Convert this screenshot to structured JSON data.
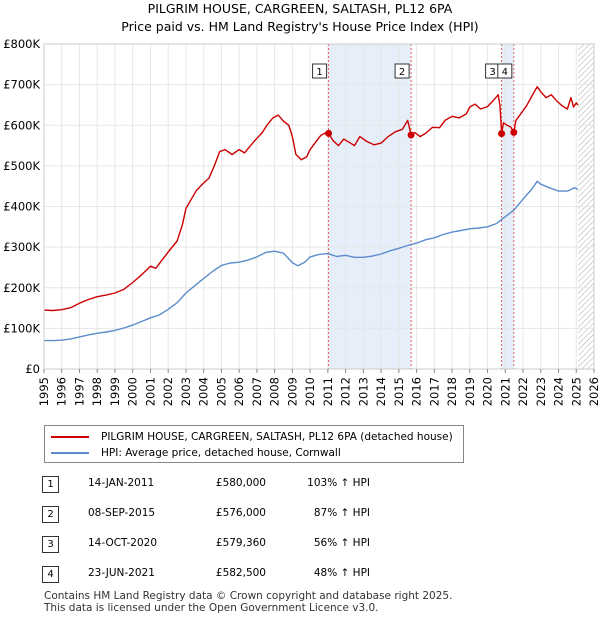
{
  "title_line1": "PILGRIM HOUSE, CARGREEN, SALTASH, PL12 6PA",
  "title_line2": "Price paid vs. HM Land Registry's House Price Index (HPI)",
  "chart_data": {
    "type": "line",
    "xlim": [
      1995,
      2026
    ],
    "ylim": [
      0,
      800000
    ],
    "y_ticks": [
      {
        "value": 0,
        "label": "£0"
      },
      {
        "value": 100000,
        "label": "£100K"
      },
      {
        "value": 200000,
        "label": "£200K"
      },
      {
        "value": 300000,
        "label": "£300K"
      },
      {
        "value": 400000,
        "label": "£400K"
      },
      {
        "value": 500000,
        "label": "£500K"
      },
      {
        "value": 600000,
        "label": "£600K"
      },
      {
        "value": 700000,
        "label": "£700K"
      },
      {
        "value": 800000,
        "label": "£800K"
      }
    ],
    "x_ticks": [
      1995,
      1996,
      1997,
      1998,
      1999,
      2000,
      2001,
      2002,
      2003,
      2004,
      2005,
      2006,
      2007,
      2008,
      2009,
      2010,
      2011,
      2012,
      2013,
      2014,
      2015,
      2016,
      2017,
      2018,
      2019,
      2020,
      2021,
      2022,
      2023,
      2024,
      2025,
      2026
    ],
    "future_hatch_from": 2025.1,
    "sale_shading": [
      [
        2011.04,
        2015.69
      ],
      [
        2020.79,
        2021.48
      ]
    ],
    "series": [
      {
        "name": "PILGRIM HOUSE, CARGREEN, SALTASH, PL12 6PA (detached house)",
        "color": "#cc0000",
        "points": [
          [
            1995.0,
            145000
          ],
          [
            1995.5,
            144000
          ],
          [
            1996.0,
            146000
          ],
          [
            1996.5,
            151000
          ],
          [
            1997.0,
            162000
          ],
          [
            1997.5,
            171000
          ],
          [
            1998.0,
            178000
          ],
          [
            1998.5,
            182000
          ],
          [
            1999.0,
            187000
          ],
          [
            1999.5,
            196000
          ],
          [
            2000.0,
            213000
          ],
          [
            2000.5,
            232000
          ],
          [
            2001.0,
            253000
          ],
          [
            2001.3,
            248000
          ],
          [
            2001.6,
            265000
          ],
          [
            2002.0,
            288000
          ],
          [
            2002.5,
            315000
          ],
          [
            2002.8,
            355000
          ],
          [
            2003.0,
            395000
          ],
          [
            2003.3,
            418000
          ],
          [
            2003.6,
            440000
          ],
          [
            2004.0,
            458000
          ],
          [
            2004.3,
            470000
          ],
          [
            2004.6,
            500000
          ],
          [
            2004.9,
            535000
          ],
          [
            2005.2,
            540000
          ],
          [
            2005.6,
            528000
          ],
          [
            2006.0,
            540000
          ],
          [
            2006.3,
            532000
          ],
          [
            2006.6,
            548000
          ],
          [
            2007.0,
            568000
          ],
          [
            2007.3,
            582000
          ],
          [
            2007.6,
            602000
          ],
          [
            2007.9,
            618000
          ],
          [
            2008.2,
            625000
          ],
          [
            2008.5,
            610000
          ],
          [
            2008.8,
            600000
          ],
          [
            2009.0,
            572000
          ],
          [
            2009.2,
            528000
          ],
          [
            2009.5,
            515000
          ],
          [
            2009.8,
            522000
          ],
          [
            2010.0,
            540000
          ],
          [
            2010.3,
            558000
          ],
          [
            2010.6,
            575000
          ],
          [
            2010.9,
            582000
          ],
          [
            2011.04,
            580000
          ],
          [
            2011.3,
            562000
          ],
          [
            2011.6,
            550000
          ],
          [
            2011.9,
            566000
          ],
          [
            2012.2,
            558000
          ],
          [
            2012.5,
            550000
          ],
          [
            2012.8,
            572000
          ],
          [
            2013.2,
            560000
          ],
          [
            2013.6,
            552000
          ],
          [
            2014.0,
            556000
          ],
          [
            2014.4,
            572000
          ],
          [
            2014.8,
            584000
          ],
          [
            2015.2,
            590000
          ],
          [
            2015.5,
            612000
          ],
          [
            2015.69,
            576000
          ],
          [
            2015.9,
            582000
          ],
          [
            2016.2,
            572000
          ],
          [
            2016.5,
            580000
          ],
          [
            2016.9,
            595000
          ],
          [
            2017.3,
            594000
          ],
          [
            2017.6,
            612000
          ],
          [
            2018.0,
            622000
          ],
          [
            2018.4,
            618000
          ],
          [
            2018.8,
            628000
          ],
          [
            2019.0,
            645000
          ],
          [
            2019.3,
            652000
          ],
          [
            2019.6,
            640000
          ],
          [
            2020.0,
            646000
          ],
          [
            2020.3,
            660000
          ],
          [
            2020.6,
            675000
          ],
          [
            2020.7,
            648000
          ],
          [
            2020.79,
            579360
          ],
          [
            2020.9,
            606000
          ],
          [
            2021.1,
            600000
          ],
          [
            2021.3,
            596000
          ],
          [
            2021.48,
            582500
          ],
          [
            2021.6,
            612000
          ],
          [
            2021.9,
            630000
          ],
          [
            2022.2,
            648000
          ],
          [
            2022.5,
            672000
          ],
          [
            2022.8,
            695000
          ],
          [
            2023.0,
            682000
          ],
          [
            2023.3,
            668000
          ],
          [
            2023.6,
            675000
          ],
          [
            2023.9,
            660000
          ],
          [
            2024.2,
            648000
          ],
          [
            2024.5,
            640000
          ],
          [
            2024.7,
            668000
          ],
          [
            2024.85,
            645000
          ],
          [
            2025.0,
            655000
          ],
          [
            2025.1,
            650000
          ]
        ]
      },
      {
        "name": "HPI: Average price, detached house, Cornwall",
        "color": "#5b8ccc",
        "points": [
          [
            1995.0,
            70000
          ],
          [
            1995.5,
            70000
          ],
          [
            1996.0,
            71000
          ],
          [
            1996.5,
            74000
          ],
          [
            1997.0,
            79000
          ],
          [
            1997.5,
            84000
          ],
          [
            1998.0,
            88000
          ],
          [
            1998.5,
            91000
          ],
          [
            1999.0,
            95000
          ],
          [
            1999.5,
            101000
          ],
          [
            2000.0,
            108000
          ],
          [
            2000.5,
            117000
          ],
          [
            2001.0,
            126000
          ],
          [
            2001.5,
            133000
          ],
          [
            2002.0,
            147000
          ],
          [
            2002.5,
            163000
          ],
          [
            2003.0,
            187000
          ],
          [
            2003.5,
            205000
          ],
          [
            2004.0,
            223000
          ],
          [
            2004.5,
            240000
          ],
          [
            2005.0,
            255000
          ],
          [
            2005.5,
            261000
          ],
          [
            2006.0,
            263000
          ],
          [
            2006.5,
            268000
          ],
          [
            2007.0,
            276000
          ],
          [
            2007.5,
            287000
          ],
          [
            2008.0,
            290000
          ],
          [
            2008.5,
            285000
          ],
          [
            2009.0,
            262000
          ],
          [
            2009.3,
            254000
          ],
          [
            2009.7,
            263000
          ],
          [
            2010.0,
            276000
          ],
          [
            2010.5,
            282000
          ],
          [
            2011.0,
            284000
          ],
          [
            2011.5,
            277000
          ],
          [
            2012.0,
            280000
          ],
          [
            2012.5,
            275000
          ],
          [
            2013.0,
            275000
          ],
          [
            2013.5,
            278000
          ],
          [
            2014.0,
            283000
          ],
          [
            2014.5,
            291000
          ],
          [
            2015.0,
            297000
          ],
          [
            2015.5,
            304000
          ],
          [
            2016.0,
            310000
          ],
          [
            2016.5,
            318000
          ],
          [
            2017.0,
            323000
          ],
          [
            2017.5,
            331000
          ],
          [
            2018.0,
            337000
          ],
          [
            2018.5,
            341000
          ],
          [
            2019.0,
            345000
          ],
          [
            2019.5,
            347000
          ],
          [
            2020.0,
            350000
          ],
          [
            2020.5,
            358000
          ],
          [
            2021.0,
            375000
          ],
          [
            2021.5,
            392000
          ],
          [
            2022.0,
            418000
          ],
          [
            2022.5,
            443000
          ],
          [
            2022.8,
            462000
          ],
          [
            2023.0,
            455000
          ],
          [
            2023.5,
            446000
          ],
          [
            2024.0,
            438000
          ],
          [
            2024.5,
            438000
          ],
          [
            2024.9,
            446000
          ],
          [
            2025.1,
            442000
          ]
        ]
      }
    ],
    "markers": [
      {
        "label": "1",
        "x": 2011.04,
        "y": 580000
      },
      {
        "label": "2",
        "x": 2015.69,
        "y": 576000
      },
      {
        "label": "3",
        "x": 2020.79,
        "y": 579360
      },
      {
        "label": "4",
        "x": 2021.48,
        "y": 582500
      }
    ]
  },
  "legend": {
    "property_label": "PILGRIM HOUSE, CARGREEN, SALTASH, PL12 6PA (detached house)",
    "hpi_label": "HPI: Average price, detached house, Cornwall"
  },
  "transactions": [
    {
      "num": "1",
      "date": "14-JAN-2011",
      "price": "£580,000",
      "hpi": "103% ↑ HPI"
    },
    {
      "num": "2",
      "date": "08-SEP-2015",
      "price": "£576,000",
      "hpi": "87% ↑ HPI"
    },
    {
      "num": "3",
      "date": "14-OCT-2020",
      "price": "£579,360",
      "hpi": "56% ↑ HPI"
    },
    {
      "num": "4",
      "date": "23-JUN-2021",
      "price": "£582,500",
      "hpi": "48% ↑ HPI"
    }
  ],
  "footer_line1": "Contains HM Land Registry data © Crown copyright and database right 2025.",
  "footer_line2": "This data is licensed under the Open Government Licence v3.0."
}
